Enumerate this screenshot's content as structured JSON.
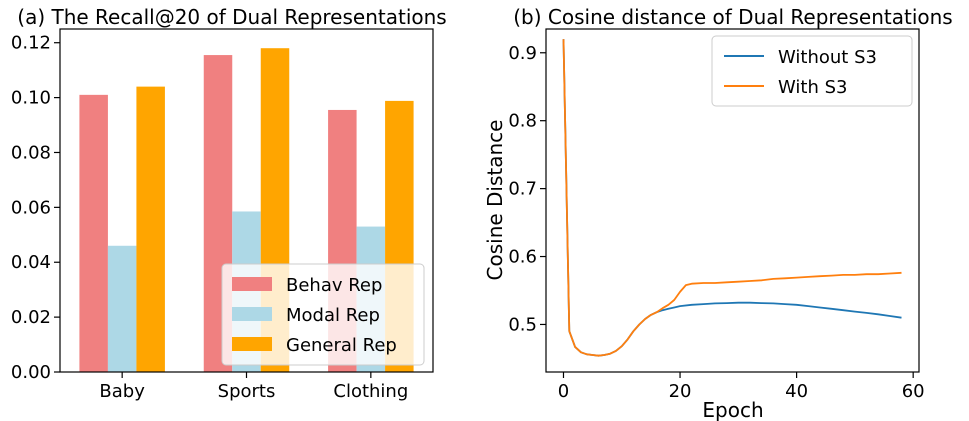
{
  "chart_data": [
    {
      "type": "bar",
      "title": "(a) The Recall@20 of Dual Representations",
      "xlabel": "",
      "ylabel": "",
      "ylim": [
        0,
        0.125
      ],
      "yticks": [
        "0.00",
        "0.02",
        "0.04",
        "0.06",
        "0.08",
        "0.10",
        "0.12"
      ],
      "categories": [
        "Baby",
        "Sports",
        "Clothing"
      ],
      "legend_position": "lower-right",
      "series": [
        {
          "name": "Behav Rep",
          "color": "#F08080",
          "values": [
            0.101,
            0.1155,
            0.0955
          ]
        },
        {
          "name": "Modal Rep",
          "color": "#ADD8E6",
          "values": [
            0.046,
            0.0585,
            0.053
          ]
        },
        {
          "name": "General Rep",
          "color": "#FFA500",
          "values": [
            0.104,
            0.118,
            0.0988
          ]
        }
      ]
    },
    {
      "type": "line",
      "title": "(b) Cosine distance of Dual Representations",
      "xlabel": "Epoch",
      "ylabel": "Cosine Distance",
      "xlim": [
        -3,
        61
      ],
      "ylim": [
        0.43,
        0.935
      ],
      "xticks": [
        "0",
        "20",
        "40",
        "60"
      ],
      "yticks": [
        "0.5",
        "0.6",
        "0.7",
        "0.8",
        "0.9"
      ],
      "legend_position": "upper-right",
      "series": [
        {
          "name": "Without S3",
          "color": "#1F77B4",
          "x": [
            0,
            1,
            2,
            3,
            4,
            5,
            6,
            7,
            8,
            9,
            10,
            11,
            12,
            13,
            14,
            15,
            16,
            17,
            18,
            19,
            20,
            22,
            24,
            26,
            28,
            30,
            32,
            34,
            36,
            38,
            40,
            42,
            44,
            46,
            48,
            50,
            52,
            54,
            56,
            58
          ],
          "y": [
            0.92,
            0.49,
            0.467,
            0.459,
            0.456,
            0.455,
            0.454,
            0.455,
            0.457,
            0.461,
            0.468,
            0.478,
            0.49,
            0.5,
            0.508,
            0.514,
            0.518,
            0.521,
            0.523,
            0.525,
            0.527,
            0.529,
            0.53,
            0.531,
            0.5315,
            0.532,
            0.532,
            0.5315,
            0.531,
            0.53,
            0.529,
            0.527,
            0.525,
            0.523,
            0.521,
            0.519,
            0.517,
            0.515,
            0.5125,
            0.51
          ]
        },
        {
          "name": "With S3",
          "color": "#FF7F0E",
          "x": [
            0,
            1,
            2,
            3,
            4,
            5,
            6,
            7,
            8,
            9,
            10,
            11,
            12,
            13,
            14,
            15,
            16,
            17,
            18,
            19,
            20,
            21,
            22,
            24,
            26,
            28,
            30,
            32,
            34,
            36,
            38,
            40,
            42,
            44,
            46,
            48,
            50,
            52,
            54,
            56,
            58
          ],
          "y": [
            0.92,
            0.49,
            0.467,
            0.459,
            0.456,
            0.455,
            0.454,
            0.455,
            0.457,
            0.461,
            0.468,
            0.478,
            0.49,
            0.5,
            0.508,
            0.514,
            0.518,
            0.524,
            0.529,
            0.536,
            0.548,
            0.558,
            0.56,
            0.561,
            0.561,
            0.562,
            0.563,
            0.564,
            0.565,
            0.567,
            0.568,
            0.569,
            0.57,
            0.571,
            0.572,
            0.573,
            0.573,
            0.574,
            0.574,
            0.575,
            0.576
          ]
        }
      ]
    }
  ]
}
